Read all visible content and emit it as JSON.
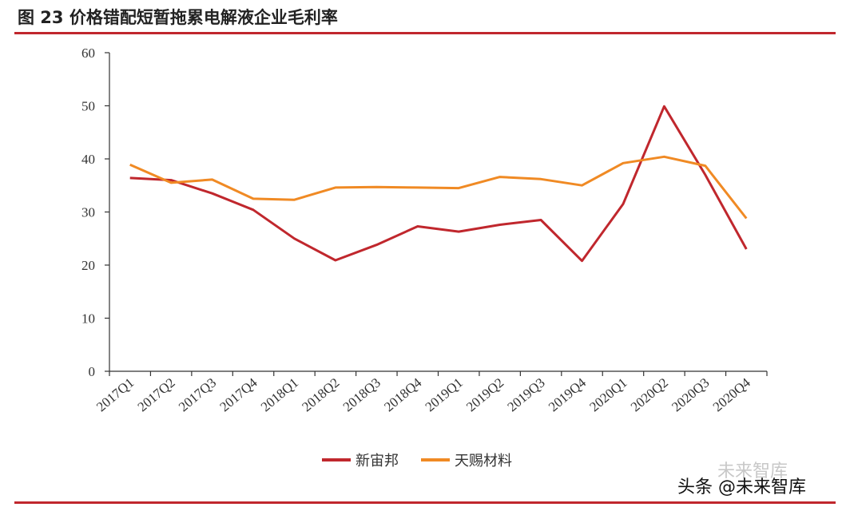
{
  "title": "图 23 价格错配短暂拖累电解液企业毛利率",
  "watermark_top": "未来智库",
  "watermark": "头条 @未来智库",
  "chart_data": {
    "type": "line",
    "categories": [
      "2017Q1",
      "2017Q2",
      "2017Q3",
      "2017Q4",
      "2018Q1",
      "2018Q2",
      "2018Q3",
      "2018Q4",
      "2019Q1",
      "2019Q2",
      "2019Q3",
      "2019Q4",
      "2020Q1",
      "2020Q2",
      "2020Q3",
      "2020Q4"
    ],
    "series": [
      {
        "name": "新宙邦",
        "color": "#c0272d",
        "values": [
          36.4,
          36.0,
          33.5,
          30.4,
          25.0,
          20.9,
          23.8,
          27.3,
          26.3,
          27.6,
          28.5,
          20.8,
          31.5,
          49.9,
          37.0,
          23.0
        ]
      },
      {
        "name": "天赐材料",
        "color": "#f08a24",
        "values": [
          38.9,
          35.5,
          36.1,
          32.5,
          32.3,
          34.6,
          34.7,
          34.6,
          34.5,
          36.6,
          36.2,
          35.0,
          39.2,
          40.4,
          38.7,
          28.8
        ]
      }
    ],
    "yticks": [
      0,
      10,
      20,
      30,
      40,
      50,
      60
    ],
    "ylim": [
      0,
      60
    ],
    "legend_position": "bottom"
  }
}
